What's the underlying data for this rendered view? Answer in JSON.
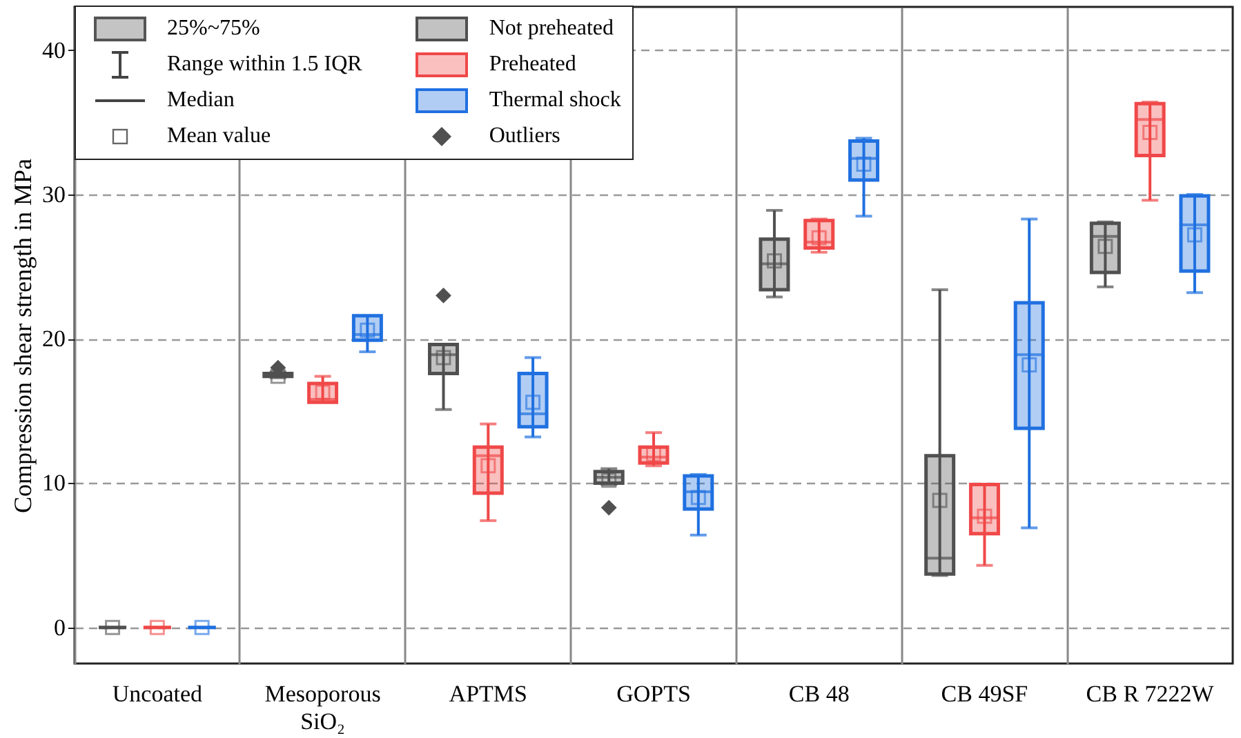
{
  "chart_data": {
    "type": "box",
    "ylabel": "Compression shear strength in MPa",
    "categories": [
      "Uncoated",
      "Mesoporous SiO₂",
      "APTMS",
      "GOPTS",
      "CB 48",
      "CB 49SF",
      "CB R 7222W"
    ],
    "ylim": [
      -2.5,
      43
    ],
    "yticks": [
      0,
      10,
      20,
      30,
      40
    ],
    "grid": true,
    "legend": "top left",
    "annotations": [
      "25%~75%",
      "Range within 1.5 IQR",
      "Median",
      "Mean value",
      "Outliers"
    ],
    "series": [
      {
        "name": "Not preheated",
        "color": "#505050",
        "boxes": [
          {
            "low": 0,
            "q1": 0,
            "median": 0,
            "q3": 0,
            "high": 0,
            "mean": 0
          },
          {
            "low": 17.3,
            "q1": 17.4,
            "median": 17.5,
            "q3": 17.6,
            "high": 17.7,
            "mean": 17.4,
            "outliers": [
              18.0
            ]
          },
          {
            "low": 15.1,
            "q1": 17.6,
            "median": 18.9,
            "q3": 19.6,
            "high": 19.6,
            "mean": 18.7,
            "outliers": [
              23.0
            ]
          },
          {
            "low": 9.9,
            "q1": 10.0,
            "median": 10.4,
            "q3": 10.8,
            "high": 11.0,
            "mean": 10.2,
            "outliers": [
              8.3
            ]
          },
          {
            "low": 22.9,
            "q1": 23.4,
            "median": 25.2,
            "q3": 26.9,
            "high": 28.9,
            "mean": 25.4
          },
          {
            "low": 3.6,
            "q1": 3.7,
            "median": 4.8,
            "q3": 11.9,
            "high": 23.4,
            "mean": 8.8
          },
          {
            "low": 23.6,
            "q1": 24.6,
            "median": 27.1,
            "q3": 28.0,
            "high": 28.1,
            "mean": 26.4
          }
        ]
      },
      {
        "name": "Preheated",
        "color": "#f04848",
        "boxes": [
          {
            "low": 0,
            "q1": 0,
            "median": 0,
            "q3": 0,
            "high": 0,
            "mean": 0
          },
          {
            "low": 15.6,
            "q1": 15.6,
            "median": 15.8,
            "q3": 16.9,
            "high": 17.4,
            "mean": 16.3
          },
          {
            "low": 7.4,
            "q1": 9.3,
            "median": 11.9,
            "q3": 12.5,
            "high": 14.1,
            "mean": 11.2
          },
          {
            "low": 11.2,
            "q1": 11.4,
            "median": 11.8,
            "q3": 12.5,
            "high": 13.5,
            "mean": 12.0
          },
          {
            "low": 26.0,
            "q1": 26.3,
            "median": 26.7,
            "q3": 28.2,
            "high": 28.3,
            "mean": 27.0
          },
          {
            "low": 4.3,
            "q1": 6.5,
            "median": 7.6,
            "q3": 9.9,
            "high": 9.9,
            "mean": 7.7
          },
          {
            "low": 29.6,
            "q1": 32.7,
            "median": 35.2,
            "q3": 36.3,
            "high": 36.4,
            "mean": 34.3
          }
        ]
      },
      {
        "name": "Thermal shock",
        "color": "#2070e0",
        "boxes": [
          {
            "low": 0,
            "q1": 0,
            "median": 0,
            "q3": 0,
            "high": 0,
            "mean": 0
          },
          {
            "low": 19.1,
            "q1": 19.9,
            "median": 20.3,
            "q3": 21.6,
            "high": 21.6,
            "mean": 20.6
          },
          {
            "low": 13.2,
            "q1": 13.9,
            "median": 14.8,
            "q3": 17.6,
            "high": 18.7,
            "mean": 15.6
          },
          {
            "low": 6.4,
            "q1": 8.2,
            "median": 9.4,
            "q3": 10.5,
            "high": 10.6,
            "mean": 9.0
          },
          {
            "low": 28.5,
            "q1": 31.0,
            "median": 32.5,
            "q3": 33.7,
            "high": 33.9,
            "mean": 32.1
          },
          {
            "low": 6.9,
            "q1": 13.8,
            "median": 18.9,
            "q3": 22.5,
            "high": 28.3,
            "mean": 18.2
          },
          {
            "low": 23.2,
            "q1": 24.7,
            "median": 27.9,
            "q3": 29.9,
            "high": 30.0,
            "mean": 27.2
          }
        ]
      }
    ]
  }
}
